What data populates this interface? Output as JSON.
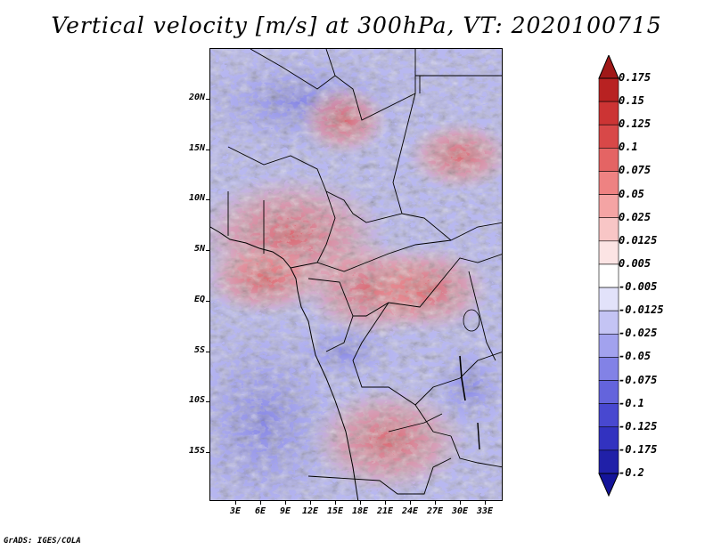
{
  "title": "Vertical velocity [m/s] at 300hPa, VT: 2020100715",
  "credit": "GrADS: IGES/COLA",
  "map": {
    "lat_labels": [
      "20N",
      "15N",
      "10N",
      "5N",
      "EQ",
      "5S",
      "10S",
      "15S"
    ],
    "lon_labels": [
      "3E",
      "6E",
      "9E",
      "12E",
      "15E",
      "18E",
      "21E",
      "24E",
      "27E",
      "30E",
      "33E"
    ],
    "lat_range": [
      -20,
      24.5
    ],
    "lon_range": [
      0,
      35
    ]
  },
  "colorbar": {
    "levels": [
      "0.175",
      "0.15",
      "0.125",
      "0.1",
      "0.075",
      "0.05",
      "0.025",
      "0.0125",
      "0.005",
      "-0.005",
      "-0.0125",
      "-0.025",
      "-0.05",
      "-0.075",
      "-0.1",
      "-0.125",
      "-0.175",
      "-0.2"
    ],
    "colors": [
      "#a01818",
      "#b82222",
      "#cc3434",
      "#d84848",
      "#e46464",
      "#ee8282",
      "#f4a4a4",
      "#f8c6c6",
      "#fce4e4",
      "#ffffff",
      "#e2e2fa",
      "#c4c4f4",
      "#a2a2ee",
      "#8282e6",
      "#6464dc",
      "#4848d0",
      "#3232c0",
      "#2020a8",
      "#14149a"
    ]
  }
}
